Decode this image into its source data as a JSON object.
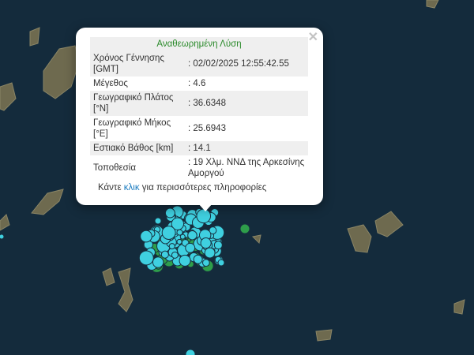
{
  "popup": {
    "title": "Αναθεωρημένη Λύση",
    "close_icon": "close-icon",
    "rows": [
      {
        "label": "Χρόνος Γέννησης [GMT]",
        "value": ": 02/02/2025 12:55:42.55"
      },
      {
        "label": "Μέγεθος",
        "value": ": 4.6"
      },
      {
        "label": "Γεωγραφικό Πλάτος [°N]",
        "value": ": 36.6348"
      },
      {
        "label": "Γεωγραφικό Μήκος [°E]",
        "value": ": 25.6943"
      },
      {
        "label": "Εστιακό Βάθος [km]",
        "value": ": 14.1"
      },
      {
        "label": "Τοποθεσία",
        "value": ": 19 Χλμ. ΝΝΔ της Αρκεσίνης Αμοργού"
      }
    ],
    "more_prefix": "Κάντε ",
    "more_link": "κλικ",
    "more_suffix": " για περισσότερες πληροφορίες"
  },
  "colors": {
    "sea": "#13293a",
    "land": "#6b6a4e",
    "marker_recent": "#3fd0e0",
    "marker_older": "#2e9e4a"
  }
}
